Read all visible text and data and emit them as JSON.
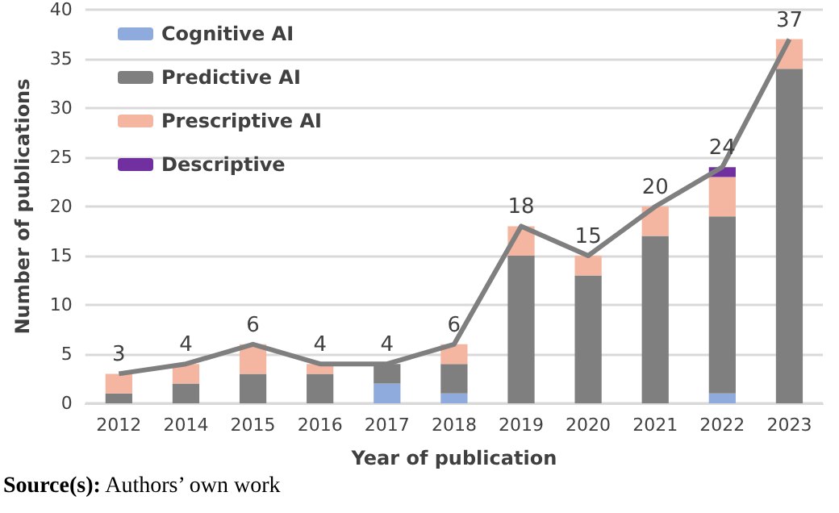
{
  "chart_data": {
    "type": "bar",
    "stacked": true,
    "xlabel": "Year of publication",
    "ylabel": "Number of publications",
    "categories": [
      "2012",
      "2014",
      "2015",
      "2016",
      "2017",
      "2018",
      "2019",
      "2020",
      "2021",
      "2022",
      "2023"
    ],
    "series": [
      {
        "name": "Cognitive AI",
        "color": "#8faadc",
        "values": [
          0,
          0,
          0,
          0,
          2,
          1,
          0,
          0,
          0,
          1,
          0
        ]
      },
      {
        "name": "Predictive AI",
        "color": "#7f7f7f",
        "values": [
          1,
          2,
          3,
          3,
          2,
          3,
          15,
          13,
          17,
          18,
          34
        ]
      },
      {
        "name": "Prescriptive AI",
        "color": "#f4b6a0",
        "values": [
          2,
          2,
          3,
          1,
          0,
          2,
          3,
          2,
          3,
          4,
          3
        ]
      },
      {
        "name": "Descriptive",
        "color": "#7030a0",
        "values": [
          0,
          0,
          0,
          0,
          0,
          0,
          0,
          0,
          0,
          1,
          0
        ]
      },
      {
        "type": "line",
        "color": "#7f7f7f",
        "values": [
          3,
          4,
          6,
          4,
          4,
          6,
          18,
          15,
          20,
          24,
          37
        ],
        "value_labels": [
          "3",
          "4",
          "6",
          "4",
          "4",
          "6",
          "18",
          "15",
          "20",
          "24",
          "37"
        ],
        "marker": "none",
        "line_style": "solid"
      }
    ],
    "ylim": [
      0,
      40
    ],
    "yticks": [
      0,
      5,
      10,
      15,
      20,
      25,
      30,
      35,
      40
    ],
    "grid": "y",
    "legend": "top left",
    "annotations": [
      "Source(s): Authors’ own work"
    ]
  }
}
